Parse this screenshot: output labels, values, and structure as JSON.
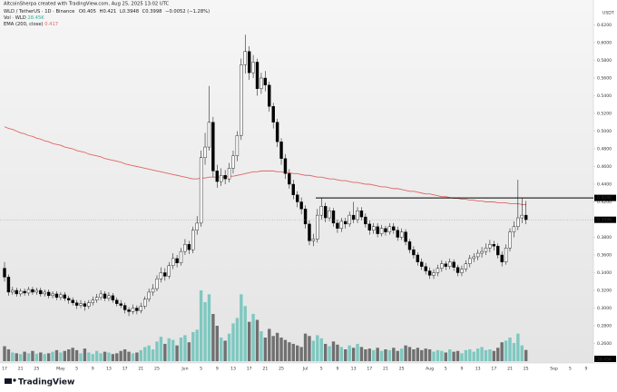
{
  "chart_data": {
    "type": "candlestick",
    "author_line": "AltcoinSherpa created with TradingView.com, Aug 25, 2025 13:02 UTC",
    "symbol": "WLD / TetherUS · 1D · Binance",
    "ohlc_labels": [
      "O",
      "H",
      "L",
      "C"
    ],
    "change": "−0.0052 (−1.28%)",
    "volume_label": "Vol · WLD",
    "volume_unit": "K",
    "ema_label": "EMA (200, close)",
    "currency": "USDT",
    "brand": "TradingView",
    "ylim": [
      0.24,
      0.64
    ],
    "yticks": [
      {
        "value": 0.26,
        "label": "0.2600"
      },
      {
        "value": 0.28,
        "label": "0.2800"
      },
      {
        "value": 0.3,
        "label": "0.3000"
      },
      {
        "value": 0.32,
        "label": "0.3200"
      },
      {
        "value": 0.34,
        "label": "0.3400"
      },
      {
        "value": 0.36,
        "label": "0.3600"
      },
      {
        "value": 0.38,
        "label": "0.3800"
      },
      {
        "value": 0.4,
        "label": "0.4000"
      },
      {
        "value": 0.42,
        "label": "0.4200"
      },
      {
        "value": 0.44,
        "label": "0.4400"
      },
      {
        "value": 0.46,
        "label": "0.4600"
      },
      {
        "value": 0.48,
        "label": "0.4800"
      },
      {
        "value": 0.5,
        "label": "0.5000"
      },
      {
        "value": 0.52,
        "label": "0.5200"
      },
      {
        "value": 0.54,
        "label": "0.5400"
      },
      {
        "value": 0.56,
        "label": "0.5600"
      },
      {
        "value": 0.58,
        "label": "0.5800"
      },
      {
        "value": 0.6,
        "label": "0.6000"
      },
      {
        "value": 0.62,
        "label": "0.6200"
      }
    ],
    "grid": false,
    "level": 0.4245,
    "up_color": "#ffffff",
    "down_color": "#000000",
    "volume_up_color": "#7ec8c0",
    "volume_down_color": "#707070",
    "ema_color": "#e06666",
    "level_color": "#000000",
    "categories": [
      "17",
      null,
      null,
      null,
      "21",
      null,
      null,
      null,
      "25",
      null,
      null,
      null,
      null,
      null,
      "May",
      null,
      null,
      null,
      "5",
      null,
      null,
      null,
      "9",
      null,
      null,
      null,
      "13",
      null,
      null,
      null,
      "17",
      null,
      null,
      null,
      "21",
      null,
      null,
      null,
      "25",
      null,
      null,
      null,
      null,
      null,
      null,
      "Jun",
      null,
      null,
      null,
      "5",
      null,
      null,
      null,
      "9",
      null,
      null,
      null,
      "13",
      null,
      null,
      null,
      "17",
      null,
      null,
      null,
      "21",
      null,
      null,
      null,
      "25",
      null,
      null,
      null,
      null,
      null,
      "Jul",
      null,
      null,
      null,
      "5",
      null,
      null,
      null,
      "9",
      null,
      null,
      null,
      "13",
      null,
      null,
      null,
      "17",
      null,
      null,
      null,
      "21",
      null,
      null,
      null,
      "25",
      null,
      null,
      null,
      null,
      null,
      null,
      "Aug",
      null,
      null,
      null,
      "5",
      null,
      null,
      null,
      "9",
      null,
      null,
      null,
      "13",
      null,
      null,
      null,
      "17",
      null,
      null,
      null,
      "21",
      null,
      null,
      null,
      "25",
      null,
      null,
      null,
      null,
      null,
      null,
      "Sep",
      null,
      null,
      null,
      "5",
      null,
      null,
      null,
      "9"
    ],
    "open": [
      0.345,
      0.335,
      0.318,
      0.32,
      0.316,
      0.319,
      0.317,
      0.321,
      0.318,
      0.32,
      0.316,
      0.318,
      0.314,
      0.316,
      0.312,
      0.315,
      0.311,
      0.309,
      0.306,
      0.303,
      0.305,
      0.302,
      0.306,
      0.309,
      0.312,
      0.316,
      0.311,
      0.314,
      0.309,
      0.305,
      0.303,
      0.298,
      0.296,
      0.3,
      0.297,
      0.302,
      0.31,
      0.318,
      0.322,
      0.333,
      0.34,
      0.336,
      0.348,
      0.356,
      0.351,
      0.364,
      0.372,
      0.366,
      0.388,
      0.396,
      0.47,
      0.482,
      0.51,
      0.455,
      0.443,
      0.45,
      0.446,
      0.458,
      0.472,
      0.495,
      0.575,
      0.59,
      0.566,
      0.578,
      0.548,
      0.56,
      0.552,
      0.528,
      0.51,
      0.488,
      0.469,
      0.452,
      0.44,
      0.428,
      0.42,
      0.412,
      0.395,
      0.376,
      0.378,
      0.405,
      0.415,
      0.402,
      0.41,
      0.396,
      0.39,
      0.398,
      0.395,
      0.405,
      0.4,
      0.41,
      0.403,
      0.395,
      0.388,
      0.392,
      0.384,
      0.39,
      0.386,
      0.392,
      0.388,
      0.38,
      0.386,
      0.375,
      0.366,
      0.36,
      0.352,
      0.347,
      0.342,
      0.337,
      0.34,
      0.345,
      0.35,
      0.347,
      0.352,
      0.346,
      0.34,
      0.344,
      0.35,
      0.356,
      0.358,
      0.362,
      0.364,
      0.368,
      0.372,
      0.37,
      0.36,
      0.352,
      0.368,
      0.386,
      0.392,
      0.402,
      0.405,
      null,
      null,
      null,
      null,
      null,
      null,
      null,
      null,
      null,
      null,
      null,
      null,
      null,
      null,
      null
    ],
    "high": [
      0.352,
      0.338,
      0.324,
      0.323,
      0.322,
      0.322,
      0.324,
      0.324,
      0.323,
      0.323,
      0.321,
      0.321,
      0.319,
      0.319,
      0.318,
      0.318,
      0.314,
      0.312,
      0.309,
      0.309,
      0.308,
      0.309,
      0.313,
      0.316,
      0.32,
      0.319,
      0.318,
      0.317,
      0.312,
      0.309,
      0.306,
      0.301,
      0.304,
      0.303,
      0.306,
      0.313,
      0.322,
      0.327,
      0.337,
      0.346,
      0.345,
      0.352,
      0.362,
      0.36,
      0.368,
      0.378,
      0.376,
      0.392,
      0.404,
      0.478,
      0.498,
      0.551,
      0.516,
      0.462,
      0.458,
      0.456,
      0.464,
      0.478,
      0.5,
      0.582,
      0.609,
      0.596,
      0.586,
      0.582,
      0.566,
      0.568,
      0.556,
      0.532,
      0.514,
      0.492,
      0.474,
      0.457,
      0.445,
      0.432,
      0.425,
      0.416,
      0.399,
      0.384,
      0.412,
      0.425,
      0.419,
      0.414,
      0.413,
      0.4,
      0.402,
      0.402,
      0.409,
      0.42,
      0.414,
      0.414,
      0.407,
      0.399,
      0.396,
      0.396,
      0.394,
      0.393,
      0.396,
      0.396,
      0.392,
      0.39,
      0.389,
      0.378,
      0.37,
      0.363,
      0.356,
      0.351,
      0.346,
      0.344,
      0.349,
      0.354,
      0.353,
      0.356,
      0.355,
      0.349,
      0.348,
      0.354,
      0.36,
      0.362,
      0.366,
      0.369,
      0.373,
      0.377,
      0.376,
      0.373,
      0.364,
      0.372,
      0.39,
      0.398,
      0.445,
      0.424,
      0.421,
      null,
      null,
      null,
      null,
      null,
      null,
      null,
      null,
      null,
      null,
      null,
      null,
      null,
      null,
      null
    ],
    "low": [
      0.33,
      0.314,
      0.315,
      0.313,
      0.313,
      0.314,
      0.314,
      0.315,
      0.315,
      0.313,
      0.313,
      0.311,
      0.311,
      0.309,
      0.309,
      0.308,
      0.305,
      0.303,
      0.299,
      0.3,
      0.297,
      0.299,
      0.303,
      0.306,
      0.309,
      0.308,
      0.308,
      0.306,
      0.302,
      0.3,
      0.294,
      0.291,
      0.293,
      0.293,
      0.294,
      0.299,
      0.307,
      0.314,
      0.319,
      0.329,
      0.331,
      0.333,
      0.344,
      0.346,
      0.348,
      0.36,
      0.361,
      0.362,
      0.383,
      0.392,
      0.462,
      0.478,
      0.448,
      0.436,
      0.438,
      0.44,
      0.442,
      0.452,
      0.466,
      0.49,
      0.565,
      0.558,
      0.56,
      0.54,
      0.542,
      0.545,
      0.522,
      0.503,
      0.482,
      0.462,
      0.446,
      0.435,
      0.423,
      0.414,
      0.406,
      0.39,
      0.371,
      0.37,
      0.374,
      0.4,
      0.397,
      0.398,
      0.392,
      0.385,
      0.386,
      0.39,
      0.392,
      0.396,
      0.396,
      0.399,
      0.391,
      0.383,
      0.384,
      0.38,
      0.381,
      0.382,
      0.383,
      0.384,
      0.376,
      0.377,
      0.371,
      0.362,
      0.356,
      0.348,
      0.343,
      0.338,
      0.333,
      0.333,
      0.336,
      0.341,
      0.343,
      0.344,
      0.342,
      0.336,
      0.336,
      0.341,
      0.346,
      0.352,
      0.354,
      0.357,
      0.36,
      0.363,
      0.365,
      0.356,
      0.347,
      0.349,
      0.364,
      0.38,
      0.388,
      0.396,
      0.3948,
      null,
      null,
      null,
      null,
      null,
      null,
      null,
      null,
      null,
      null,
      null,
      null,
      null,
      null,
      null
    ],
    "close": [
      0.335,
      0.318,
      0.32,
      0.316,
      0.319,
      0.317,
      0.321,
      0.318,
      0.32,
      0.316,
      0.318,
      0.314,
      0.316,
      0.312,
      0.315,
      0.311,
      0.309,
      0.306,
      0.303,
      0.305,
      0.302,
      0.306,
      0.309,
      0.312,
      0.316,
      0.311,
      0.314,
      0.309,
      0.305,
      0.303,
      0.298,
      0.296,
      0.3,
      0.297,
      0.302,
      0.31,
      0.318,
      0.322,
      0.333,
      0.34,
      0.336,
      0.348,
      0.356,
      0.351,
      0.364,
      0.372,
      0.366,
      0.388,
      0.396,
      0.47,
      0.482,
      0.51,
      0.455,
      0.443,
      0.45,
      0.446,
      0.458,
      0.472,
      0.495,
      0.575,
      0.59,
      0.566,
      0.578,
      0.548,
      0.56,
      0.552,
      0.528,
      0.51,
      0.488,
      0.469,
      0.452,
      0.44,
      0.428,
      0.42,
      0.412,
      0.395,
      0.376,
      0.378,
      0.405,
      0.415,
      0.402,
      0.41,
      0.396,
      0.39,
      0.398,
      0.395,
      0.405,
      0.4,
      0.41,
      0.403,
      0.395,
      0.388,
      0.392,
      0.384,
      0.39,
      0.386,
      0.392,
      0.388,
      0.38,
      0.386,
      0.375,
      0.366,
      0.36,
      0.352,
      0.347,
      0.342,
      0.337,
      0.34,
      0.345,
      0.35,
      0.347,
      0.352,
      0.346,
      0.34,
      0.344,
      0.35,
      0.356,
      0.358,
      0.362,
      0.364,
      0.368,
      0.372,
      0.37,
      0.36,
      0.352,
      0.368,
      0.386,
      0.392,
      0.402,
      0.405,
      0.3998,
      null,
      null,
      null,
      null,
      null,
      null,
      null,
      null,
      null,
      null,
      null,
      null,
      null,
      null,
      null
    ],
    "volume": [
      38,
      30,
      22,
      20,
      18,
      24,
      20,
      26,
      19,
      22,
      18,
      20,
      24,
      28,
      22,
      26,
      30,
      34,
      28,
      20,
      32,
      22,
      18,
      26,
      20,
      24,
      22,
      18,
      20,
      26,
      30,
      24,
      20,
      22,
      28,
      36,
      40,
      30,
      50,
      62,
      44,
      58,
      54,
      40,
      60,
      66,
      48,
      74,
      80,
      180,
      150,
      170,
      120,
      90,
      60,
      52,
      70,
      96,
      110,
      170,
      140,
      100,
      120,
      105,
      76,
      60,
      82,
      64,
      72,
      60,
      54,
      48,
      44,
      40,
      36,
      70,
      64,
      52,
      66,
      58,
      44,
      38,
      50,
      42,
      36,
      30,
      40,
      34,
      44,
      36,
      30,
      32,
      28,
      34,
      26,
      30,
      28,
      34,
      26,
      32,
      40,
      36,
      30,
      34,
      28,
      32,
      30,
      24,
      28,
      26,
      22,
      30,
      24,
      26,
      20,
      28,
      30,
      24,
      32,
      36,
      28,
      30,
      26,
      34,
      48,
      52,
      60,
      46,
      70,
      40,
      28.45,
      null,
      null,
      null,
      null,
      null,
      null,
      null,
      null,
      null,
      null,
      null,
      null,
      null,
      null,
      null
    ],
    "ema": [
      0.505,
      0.503,
      0.502,
      0.5,
      0.498,
      0.497,
      0.495,
      0.494,
      0.492,
      0.491,
      0.489,
      0.488,
      0.486,
      0.485,
      0.484,
      0.482,
      0.481,
      0.48,
      0.478,
      0.477,
      0.476,
      0.474,
      0.473,
      0.472,
      0.471,
      0.469,
      0.468,
      0.467,
      0.466,
      0.465,
      0.463,
      0.462,
      0.461,
      0.46,
      0.459,
      0.458,
      0.457,
      0.456,
      0.455,
      0.454,
      0.453,
      0.452,
      0.451,
      0.45,
      0.449,
      0.448,
      0.447,
      0.446,
      0.446,
      0.447,
      0.447,
      0.448,
      0.448,
      0.448,
      0.448,
      0.448,
      0.449,
      0.449,
      0.45,
      0.451,
      0.452,
      0.453,
      0.454,
      0.454,
      0.455,
      0.455,
      0.455,
      0.455,
      0.454,
      0.454,
      0.453,
      0.453,
      0.452,
      0.452,
      0.451,
      0.45,
      0.45,
      0.449,
      0.448,
      0.448,
      0.447,
      0.446,
      0.446,
      0.445,
      0.444,
      0.444,
      0.443,
      0.442,
      0.442,
      0.441,
      0.44,
      0.44,
      0.439,
      0.438,
      0.437,
      0.437,
      0.436,
      0.435,
      0.435,
      0.434,
      0.433,
      0.432,
      0.432,
      0.431,
      0.43,
      0.429,
      0.429,
      0.428,
      0.427,
      0.426,
      0.426,
      0.425,
      0.424,
      0.424,
      0.423,
      0.423,
      0.422,
      0.422,
      0.421,
      0.421,
      0.42,
      0.42,
      0.42,
      0.419,
      0.419,
      0.419,
      0.418,
      0.418,
      0.418,
      0.417,
      0.417,
      null,
      null,
      null,
      null,
      null,
      null,
      null,
      null,
      null,
      null,
      null,
      null,
      null,
      null,
      null
    ]
  }
}
